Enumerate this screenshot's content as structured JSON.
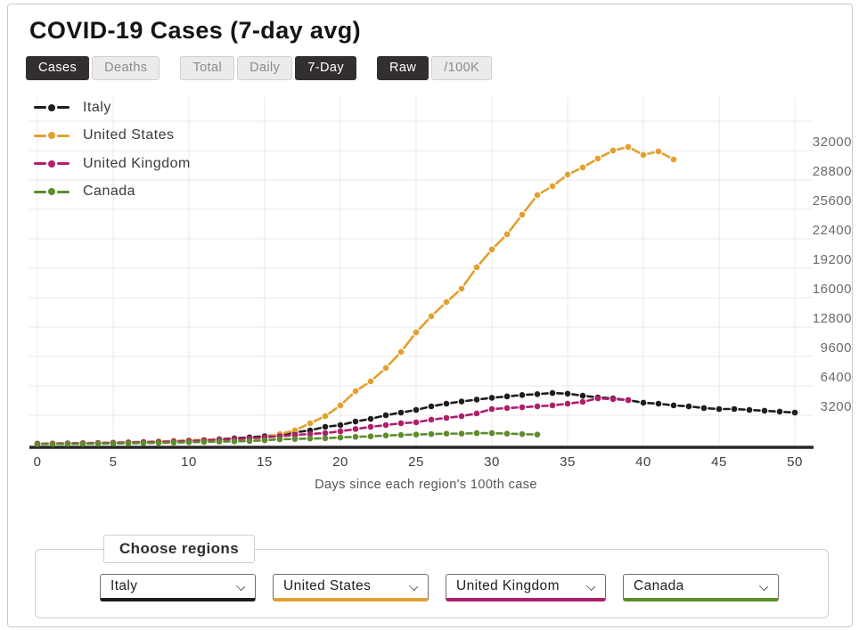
{
  "header": {
    "title": "COVID-19 Cases (7-day avg)"
  },
  "toolbar": {
    "groups": [
      {
        "name": "metric",
        "buttons": [
          {
            "label": "Cases",
            "active": true
          },
          {
            "label": "Deaths",
            "active": false
          }
        ]
      },
      {
        "name": "aggregation",
        "buttons": [
          {
            "label": "Total",
            "active": false
          },
          {
            "label": "Daily",
            "active": false
          },
          {
            "label": "7-Day",
            "active": true
          }
        ]
      },
      {
        "name": "scale",
        "buttons": [
          {
            "label": "Raw",
            "active": true
          },
          {
            "label": "/100K",
            "active": false
          }
        ]
      }
    ]
  },
  "chart_data": {
    "type": "line",
    "title": "COVID-19 Cases (7-day avg)",
    "xlabel": "Days since each region's 100th case",
    "ylabel": "",
    "grid": true,
    "legend_position": "top-left",
    "xlim": [
      0,
      51.5
    ],
    "ylim": [
      0,
      38000
    ],
    "xticks": [
      0,
      5,
      10,
      15,
      20,
      25,
      30,
      35,
      40,
      45,
      50
    ],
    "yticks": [
      3200,
      6400,
      9600,
      12800,
      16000,
      19200,
      22400,
      25600,
      28800,
      32000
    ],
    "x_definition": "days since each region's 100th case, one point per day starting at day 0",
    "series": [
      {
        "name": "Italy",
        "color": "#1d1d1d",
        "values": [
          105,
          120,
          140,
          160,
          185,
          215,
          250,
          290,
          335,
          390,
          450,
          520,
          600,
          690,
          800,
          920,
          1060,
          1350,
          1550,
          1940,
          2130,
          2520,
          2810,
          3200,
          3490,
          3780,
          4170,
          4460,
          4700,
          4900,
          5100,
          5250,
          5400,
          5500,
          5620,
          5550,
          5330,
          5140,
          5040,
          4850,
          4560,
          4460,
          4270,
          4170,
          3980,
          3880,
          3880,
          3780,
          3690,
          3590,
          3490
        ]
      },
      {
        "name": "United States",
        "color": "#e2a02e",
        "values": [
          110,
          125,
          145,
          165,
          190,
          220,
          255,
          295,
          340,
          395,
          455,
          525,
          560,
          600,
          640,
          780,
          1160,
          1550,
          2330,
          3100,
          4270,
          5820,
          6890,
          8340,
          10090,
          12220,
          13970,
          15520,
          16980,
          19300,
          21240,
          22890,
          25030,
          27160,
          28130,
          29390,
          30170,
          31140,
          32010,
          32400,
          31530,
          31910,
          31040
        ]
      },
      {
        "name": "United Kingdom",
        "color": "#b01e6b",
        "values": [
          100,
          115,
          130,
          150,
          170,
          195,
          225,
          260,
          300,
          345,
          400,
          460,
          530,
          610,
          700,
          800,
          920,
          1060,
          1160,
          1260,
          1450,
          1700,
          1940,
          2130,
          2330,
          2430,
          2720,
          2910,
          3100,
          3400,
          3880,
          3980,
          4070,
          4170,
          4270,
          4460,
          4660,
          5040,
          4950,
          4850
        ]
      },
      {
        "name": "Canada",
        "color": "#5d8c2b",
        "values": [
          60,
          70,
          80,
          95,
          110,
          125,
          145,
          170,
          195,
          225,
          260,
          300,
          330,
          360,
          390,
          480,
          580,
          620,
          660,
          700,
          780,
          850,
          900,
          1000,
          1050,
          1100,
          1150,
          1200,
          1200,
          1250,
          1250,
          1200,
          1150,
          1100
        ]
      }
    ]
  },
  "regions": {
    "label": "Choose regions",
    "selects": [
      {
        "value": "Italy",
        "color": "#1d1d1d"
      },
      {
        "value": "United States",
        "color": "#e2a02e"
      },
      {
        "value": "United Kingdom",
        "color": "#b01e6b"
      },
      {
        "value": "Canada",
        "color": "#5d8c2b"
      }
    ]
  }
}
